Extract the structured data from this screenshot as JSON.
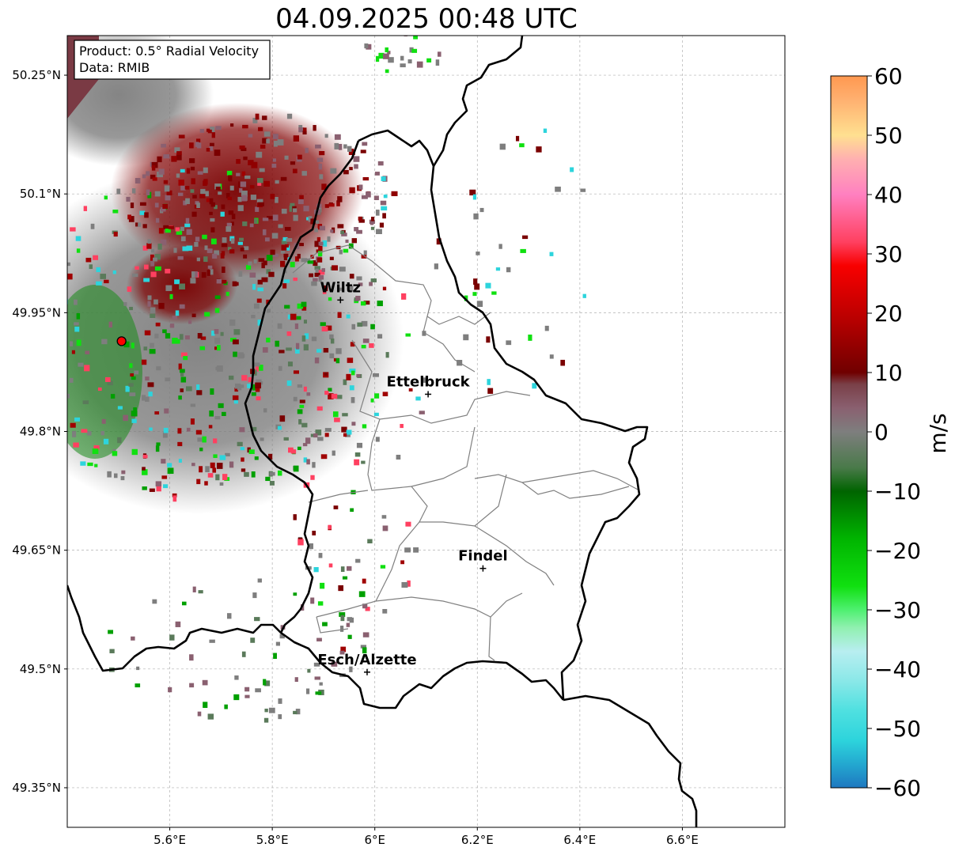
{
  "title": "04.09.2025 00:48 UTC",
  "info_box": {
    "product": "Product: 0.5° Radial Velocity",
    "data": "Data: RMIB"
  },
  "map": {
    "lon_range": [
      5.4,
      6.8
    ],
    "lat_range": [
      49.3,
      50.3
    ],
    "x_ticks": [
      {
        "value": 5.6,
        "label": "5.6°E"
      },
      {
        "value": 5.8,
        "label": "5.8°E"
      },
      {
        "value": 6.0,
        "label": "6°E"
      },
      {
        "value": 6.2,
        "label": "6.2°E"
      },
      {
        "value": 6.4,
        "label": "6.4°E"
      },
      {
        "value": 6.6,
        "label": "6.6°E"
      }
    ],
    "y_ticks": [
      {
        "value": 50.25,
        "label": "50.25°N"
      },
      {
        "value": 50.1,
        "label": "50.1°N"
      },
      {
        "value": 49.95,
        "label": "49.95°N"
      },
      {
        "value": 49.8,
        "label": "49.8°N"
      },
      {
        "value": 49.65,
        "label": "49.65°N"
      },
      {
        "value": 49.5,
        "label": "49.5°N"
      },
      {
        "value": 49.35,
        "label": "49.35°N"
      }
    ],
    "grid": true,
    "radar_site": {
      "lon": 5.506,
      "lat": 49.914
    },
    "cities": [
      {
        "name": "Wiltz",
        "lon": 5.933,
        "lat": 49.966
      },
      {
        "name": "Ettelbruck",
        "lon": 6.104,
        "lat": 49.847
      },
      {
        "name": "Findel",
        "lon": 6.211,
        "lat": 49.627
      },
      {
        "name": "Esch/Alzette",
        "lon": 5.985,
        "lat": 49.496
      }
    ]
  },
  "colorbar": {
    "label": "m/s",
    "min": -60,
    "max": 60,
    "ticks": [
      {
        "value": 60,
        "label": "60"
      },
      {
        "value": 50,
        "label": "50"
      },
      {
        "value": 40,
        "label": "40"
      },
      {
        "value": 30,
        "label": "30"
      },
      {
        "value": 20,
        "label": "20"
      },
      {
        "value": 10,
        "label": "10"
      },
      {
        "value": 0,
        "label": "0"
      },
      {
        "value": -10,
        "label": "−10"
      },
      {
        "value": -20,
        "label": "−20"
      },
      {
        "value": -30,
        "label": "−30"
      },
      {
        "value": -40,
        "label": "−40"
      },
      {
        "value": -50,
        "label": "−50"
      },
      {
        "value": -60,
        "label": "−60"
      }
    ],
    "stops": [
      {
        "value": -60,
        "color": "#1f78c0"
      },
      {
        "value": -56,
        "color": "#23a8d0"
      },
      {
        "value": -52,
        "color": "#2dd4dc"
      },
      {
        "value": -47,
        "color": "#4fe0e0"
      },
      {
        "value": -42,
        "color": "#8ae8e8"
      },
      {
        "value": -37,
        "color": "#b8eef0"
      },
      {
        "value": -33,
        "color": "#90f0b0"
      },
      {
        "value": -30,
        "color": "#4ef070"
      },
      {
        "value": -26,
        "color": "#10e010"
      },
      {
        "value": -18,
        "color": "#00b400"
      },
      {
        "value": -10,
        "color": "#006400"
      },
      {
        "value": -6,
        "color": "#4a7a4a"
      },
      {
        "value": 0,
        "color": "#7e7e7e"
      },
      {
        "value": 4,
        "color": "#8a6070"
      },
      {
        "value": 8,
        "color": "#7a4048"
      },
      {
        "value": 10,
        "color": "#700000"
      },
      {
        "value": 20,
        "color": "#c00000"
      },
      {
        "value": 28,
        "color": "#f80000"
      },
      {
        "value": 32,
        "color": "#ff4060"
      },
      {
        "value": 40,
        "color": "#ff80c0"
      },
      {
        "value": 46,
        "color": "#ffb0b0"
      },
      {
        "value": 50,
        "color": "#ffe090"
      },
      {
        "value": 56,
        "color": "#ffb070"
      },
      {
        "value": 60,
        "color": "#ff9850"
      }
    ]
  }
}
